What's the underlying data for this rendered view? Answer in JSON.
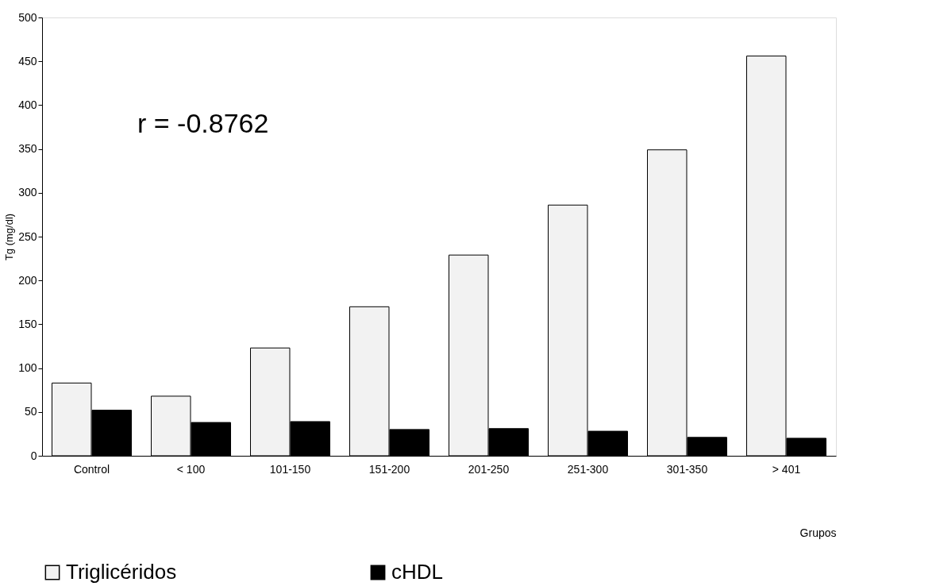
{
  "chart_data": {
    "type": "bar",
    "ylabel": "Tg (mg/dl)",
    "xlabel": "Grupos",
    "categories": [
      "Control",
      "< 100",
      "101-150",
      "151-200",
      "201-250",
      "251-300",
      "301-350",
      "> 401"
    ],
    "series": [
      {
        "name": "Triglicéridos",
        "color": "#f2f2f2",
        "values": [
          83,
          68,
          123,
          170,
          229,
          286,
          349,
          456
        ]
      },
      {
        "name": "cHDL",
        "color": "#000000",
        "values": [
          52,
          38,
          39,
          30,
          31,
          28,
          21,
          20
        ]
      }
    ],
    "ylim": [
      0,
      500
    ],
    "yticks": [
      0,
      50,
      100,
      150,
      200,
      250,
      300,
      350,
      400,
      450,
      500
    ],
    "annotations": [
      "r = -0.8762"
    ],
    "legend": "bottom",
    "grid": false
  }
}
